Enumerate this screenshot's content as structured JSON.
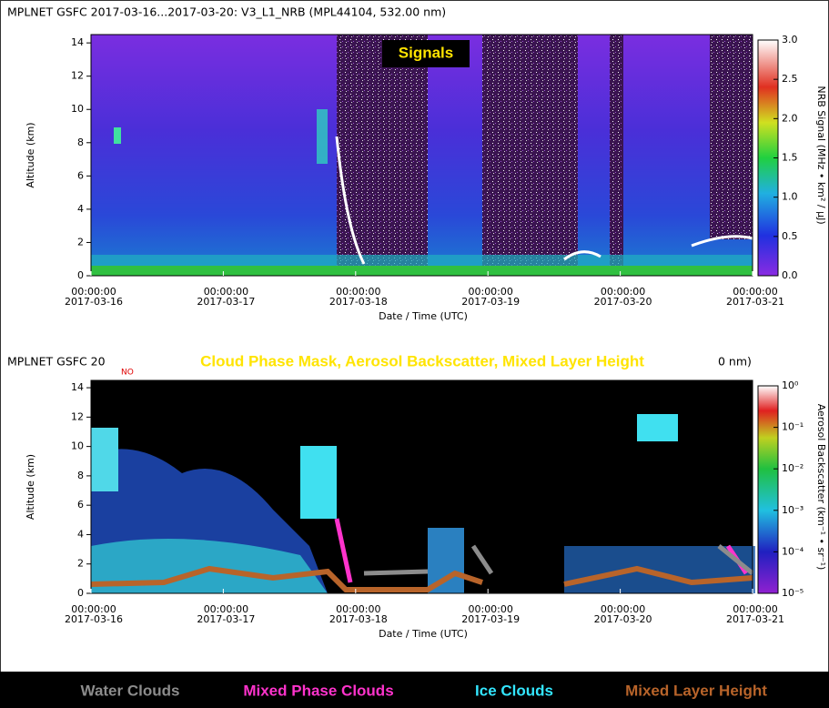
{
  "charts": [
    {
      "type": "heatmap",
      "header": "MPLNET GSFC 2017-03-16...2017-03-20:  V3_L1_NRB  (MPL44104, 532.00 nm)",
      "overlay_title": "Signals",
      "y_label": "Altitude (km)",
      "x_label": "Date / Time (UTC)",
      "ylim": [
        0,
        14.5
      ],
      "yticks": [
        0,
        2,
        4,
        6,
        8,
        10,
        12,
        14
      ],
      "x_ticks": [
        {
          "time": "00:00:00",
          "date": "2017-03-16"
        },
        {
          "time": "00:00:00",
          "date": "2017-03-17"
        },
        {
          "time": "00:00:00",
          "date": "2017-03-18"
        },
        {
          "time": "00:00:00",
          "date": "2017-03-19"
        },
        {
          "time": "00:00:00",
          "date": "2017-03-20"
        },
        {
          "time": "00:00:00",
          "date": "2017-03-21"
        }
      ],
      "colorbar": {
        "label": "NRB Signal (MHz • km² / μJ)",
        "scale": "linear",
        "lim": [
          0,
          3.0
        ],
        "ticks": [
          {
            "value": 0,
            "label": "0.0"
          },
          {
            "value": 0.5,
            "label": "0.5"
          },
          {
            "value": 1,
            "label": "1.0"
          },
          {
            "value": 1.5,
            "label": "1.5"
          },
          {
            "value": 2,
            "label": "2.0"
          },
          {
            "value": 2.5,
            "label": "2.5"
          },
          {
            "value": 3,
            "label": "3.0"
          }
        ]
      }
    },
    {
      "type": "heatmap",
      "header": "MPLNET GSFC 20",
      "header_end": "0 nm)",
      "flag": "NO",
      "overlay_title": "Cloud Phase Mask, Aerosol Backscatter, Mixed Layer Height",
      "y_label": "Altitude (km)",
      "x_label": "Date / Time (UTC)",
      "ylim": [
        0,
        14.5
      ],
      "yticks": [
        0,
        2,
        4,
        6,
        8,
        10,
        12,
        14
      ],
      "x_ticks": [
        {
          "time": "00:00:00",
          "date": "2017-03-16"
        },
        {
          "time": "00:00:00",
          "date": "2017-03-17"
        },
        {
          "time": "00:00:00",
          "date": "2017-03-18"
        },
        {
          "time": "00:00:00",
          "date": "2017-03-19"
        },
        {
          "time": "00:00:00",
          "date": "2017-03-20"
        },
        {
          "time": "00:00:00",
          "date": "2017-03-21"
        }
      ],
      "colorbar": {
        "label": "Aerosol Backscatter (km⁻¹ • sr⁻¹)",
        "scale": "log",
        "lim": [
          1e-05,
          1
        ],
        "ticks": [
          {
            "value": 1e-05,
            "label": "10⁻⁵"
          },
          {
            "value": 0.0001,
            "label": "10⁻⁴"
          },
          {
            "value": 0.001,
            "label": "10⁻³"
          },
          {
            "value": 0.01,
            "label": "10⁻²"
          },
          {
            "value": 0.1,
            "label": "10⁻¹"
          },
          {
            "value": 1,
            "label": "10⁰"
          }
        ]
      },
      "legend": [
        {
          "name": "Water Clouds",
          "color": "#8c8c8c"
        },
        {
          "name": "Mixed Phase Clouds",
          "color": "#ff33cc"
        },
        {
          "name": "Ice Clouds",
          "color": "#33e6ff"
        },
        {
          "name": "Mixed Layer Height",
          "color": "#b8642a"
        }
      ]
    }
  ]
}
